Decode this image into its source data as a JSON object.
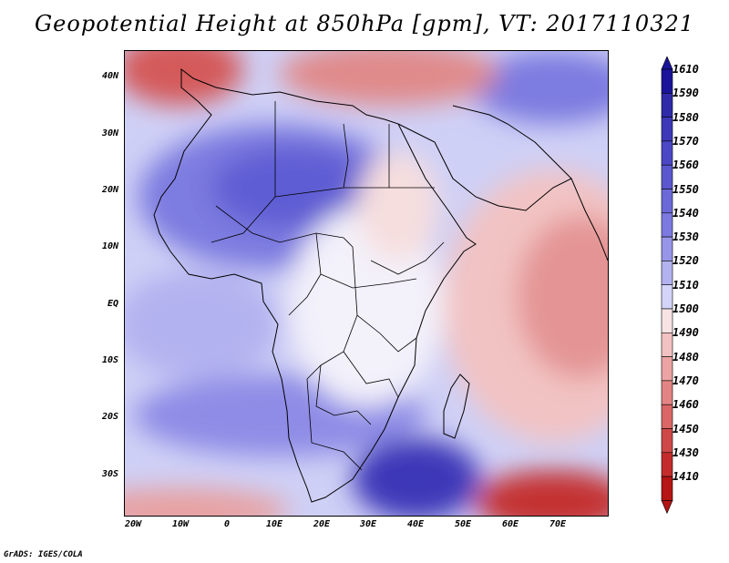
{
  "title": "Geopotential Height at 850hPa [gpm], VT: 2017110321",
  "credit": "GrADS: IGES/COLA",
  "latitude_labels": [
    "40N",
    "30N",
    "20N",
    "10N",
    "EQ",
    "10S",
    "20S",
    "30S"
  ],
  "longitude_labels": [
    "20W",
    "10W",
    "0",
    "10E",
    "20E",
    "30E",
    "40E",
    "50E",
    "60E",
    "70E"
  ],
  "colorbar": {
    "levels": [
      "1610",
      "1590",
      "1580",
      "1570",
      "1560",
      "1550",
      "1540",
      "1530",
      "1520",
      "1510",
      "1500",
      "1490",
      "1480",
      "1470",
      "1460",
      "1450",
      "1430",
      "1410"
    ],
    "colors": [
      "#1a149a",
      "#2e2aa8",
      "#3d38b8",
      "#4b47c5",
      "#5a57cf",
      "#6b69d8",
      "#7c7ae0",
      "#9795e8",
      "#b3b2f0",
      "#d4d4f8",
      "#f7e3e3",
      "#f2c2c2",
      "#eba3a3",
      "#e38484",
      "#da6666",
      "#cf4848",
      "#c42c2c",
      "#b51515"
    ]
  }
}
